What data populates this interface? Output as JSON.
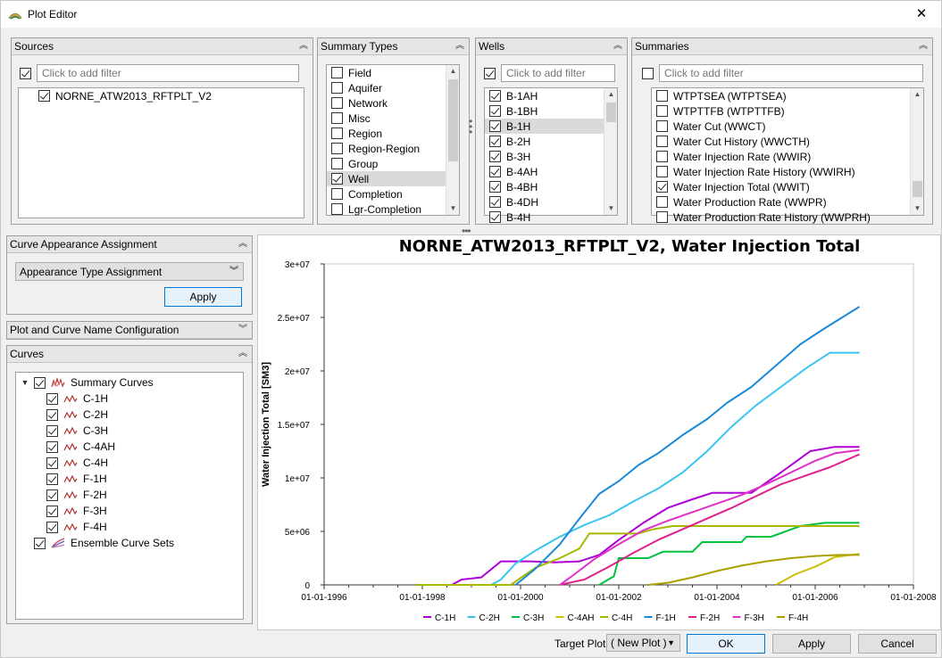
{
  "window": {
    "title": "Plot Editor",
    "close_glyph": "✕"
  },
  "sources": {
    "title": "Sources",
    "filter_placeholder": "Click to add filter",
    "filter_checked": true,
    "items": [
      {
        "label": "NORNE_ATW2013_RFTPLT_V2",
        "checked": true
      }
    ]
  },
  "summary_types": {
    "title": "Summary Types",
    "items": [
      {
        "label": "Field",
        "checked": false,
        "selected": false
      },
      {
        "label": "Aquifer",
        "checked": false,
        "selected": false
      },
      {
        "label": "Network",
        "checked": false,
        "selected": false
      },
      {
        "label": "Misc",
        "checked": false,
        "selected": false
      },
      {
        "label": "Region",
        "checked": false,
        "selected": false
      },
      {
        "label": "Region-Region",
        "checked": false,
        "selected": false
      },
      {
        "label": "Group",
        "checked": false,
        "selected": false
      },
      {
        "label": "Well",
        "checked": true,
        "selected": true
      },
      {
        "label": "Completion",
        "checked": false,
        "selected": false
      },
      {
        "label": "Lgr-Completion",
        "checked": false,
        "selected": false
      }
    ]
  },
  "wells": {
    "title": "Wells",
    "filter_placeholder": "Click to add filter",
    "filter_checked": true,
    "items": [
      {
        "label": "B-1AH",
        "checked": true,
        "selected": false
      },
      {
        "label": "B-1BH",
        "checked": true,
        "selected": false
      },
      {
        "label": "B-1H",
        "checked": true,
        "selected": true
      },
      {
        "label": "B-2H",
        "checked": true,
        "selected": false
      },
      {
        "label": "B-3H",
        "checked": true,
        "selected": false
      },
      {
        "label": "B-4AH",
        "checked": true,
        "selected": false
      },
      {
        "label": "B-4BH",
        "checked": true,
        "selected": false
      },
      {
        "label": "B-4DH",
        "checked": true,
        "selected": false
      },
      {
        "label": "B-4H",
        "checked": true,
        "selected": false
      }
    ]
  },
  "summaries": {
    "title": "Summaries",
    "filter_placeholder": "Click to add filter",
    "filter_checked": false,
    "items": [
      {
        "label": "WTPTSEA (WTPTSEA)",
        "checked": false,
        "selected": false
      },
      {
        "label": "WTPTTFB (WTPTTFB)",
        "checked": false,
        "selected": false
      },
      {
        "label": "Water Cut (WWCT)",
        "checked": false,
        "selected": false
      },
      {
        "label": "Water Cut History (WWCTH)",
        "checked": false,
        "selected": false
      },
      {
        "label": "Water Injection Rate (WWIR)",
        "checked": false,
        "selected": false
      },
      {
        "label": "Water Injection Rate History (WWIRH)",
        "checked": false,
        "selected": false
      },
      {
        "label": "Water Injection Total (WWIT)",
        "checked": true,
        "selected": false
      },
      {
        "label": "Water Production Rate (WWPR)",
        "checked": false,
        "selected": false
      },
      {
        "label": "Water Production Rate History (WWPRH)",
        "checked": false,
        "selected": false
      }
    ]
  },
  "appearance": {
    "title": "Curve Appearance Assignment",
    "dropdown": "Appearance Type Assignment",
    "apply": "Apply"
  },
  "plot_name_config": {
    "title": "Plot and Curve Name Configuration"
  },
  "curves": {
    "title": "Curves",
    "group": "Summary Curves",
    "items": [
      "C-1H",
      "C-2H",
      "C-3H",
      "C-4AH",
      "C-4H",
      "F-1H",
      "F-2H",
      "F-3H",
      "F-4H"
    ],
    "ensemble": "Ensemble Curve Sets"
  },
  "footer": {
    "target_plot_label": "Target Plot",
    "target_plot_value": "( New Plot )",
    "ok": "OK",
    "apply": "Apply",
    "cancel": "Cancel"
  },
  "chart_data": {
    "type": "line",
    "title": "NORNE_ATW2013_RFTPLT_V2, Water Injection Total",
    "xlabel": "",
    "ylabel": "Water Injection Total [SM3]",
    "xlim": [
      1996,
      2008
    ],
    "ylim": [
      0,
      30000000
    ],
    "x_ticks": [
      {
        "v": 1996,
        "label": "01-01-1996"
      },
      {
        "v": 1998,
        "label": "01-01-1998"
      },
      {
        "v": 2000,
        "label": "01-01-2000"
      },
      {
        "v": 2002,
        "label": "01-01-2002"
      },
      {
        "v": 2004,
        "label": "01-01-2004"
      },
      {
        "v": 2006,
        "label": "01-01-2006"
      },
      {
        "v": 2008,
        "label": "01-01-2008"
      }
    ],
    "y_ticks": [
      {
        "v": 0,
        "label": "0"
      },
      {
        "v": 5000000,
        "label": "5e+06"
      },
      {
        "v": 10000000,
        "label": "1e+07"
      },
      {
        "v": 15000000,
        "label": "1.5e+07"
      },
      {
        "v": 20000000,
        "label": "2e+07"
      },
      {
        "v": 25000000,
        "label": "2.5e+07"
      },
      {
        "v": 30000000,
        "label": "3e+07"
      }
    ],
    "grid": false,
    "legend": "bottom",
    "series": [
      {
        "name": "C-1H",
        "color": "#b000d8",
        "points": [
          [
            1997.9,
            0
          ],
          [
            1998.6,
            0
          ],
          [
            1998.8,
            500000
          ],
          [
            1999.2,
            700000
          ],
          [
            1999.6,
            2200000
          ],
          [
            2000.2,
            2200000
          ],
          [
            2000.7,
            2100000
          ],
          [
            2001.2,
            2200000
          ],
          [
            2001.6,
            2800000
          ],
          [
            2002.0,
            4200000
          ],
          [
            2002.5,
            5800000
          ],
          [
            2003.0,
            7200000
          ],
          [
            2003.5,
            8000000
          ],
          [
            2003.9,
            8600000
          ],
          [
            2004.7,
            8600000
          ],
          [
            2005.3,
            10500000
          ],
          [
            2005.9,
            12500000
          ],
          [
            2006.4,
            12900000
          ],
          [
            2006.9,
            12900000
          ]
        ]
      },
      {
        "name": "C-2H",
        "color": "#38c6f0",
        "points": [
          [
            1999.4,
            0
          ],
          [
            1999.6,
            500000
          ],
          [
            1999.9,
            2000000
          ],
          [
            2000.3,
            3200000
          ],
          [
            2000.8,
            4500000
          ],
          [
            2001.3,
            5600000
          ],
          [
            2001.8,
            6500000
          ],
          [
            2002.3,
            7800000
          ],
          [
            2002.8,
            9000000
          ],
          [
            2003.3,
            10500000
          ],
          [
            2003.8,
            12500000
          ],
          [
            2004.3,
            14800000
          ],
          [
            2004.8,
            16800000
          ],
          [
            2005.3,
            18500000
          ],
          [
            2005.8,
            20200000
          ],
          [
            2006.3,
            21700000
          ],
          [
            2006.9,
            21700000
          ]
        ]
      },
      {
        "name": "C-3H",
        "color": "#00c040",
        "points": [
          [
            2001.6,
            0
          ],
          [
            2001.9,
            800000
          ],
          [
            2002.0,
            2500000
          ],
          [
            2002.6,
            2500000
          ],
          [
            2002.9,
            3100000
          ],
          [
            2003.5,
            3100000
          ],
          [
            2003.7,
            4000000
          ],
          [
            2004.5,
            4000000
          ],
          [
            2004.6,
            4500000
          ],
          [
            2005.1,
            4500000
          ],
          [
            2005.7,
            5500000
          ],
          [
            2006.2,
            5800000
          ],
          [
            2006.9,
            5800000
          ]
        ]
      },
      {
        "name": "C-4AH",
        "color": "#c8c000",
        "points": [
          [
            2005.2,
            0
          ],
          [
            2005.6,
            1000000
          ],
          [
            2006.0,
            1700000
          ],
          [
            2006.4,
            2600000
          ],
          [
            2006.9,
            2900000
          ]
        ]
      },
      {
        "name": "C-4H",
        "color": "#a8b800",
        "points": [
          [
            1997.9,
            0
          ],
          [
            1999.8,
            0
          ],
          [
            2000.3,
            1600000
          ],
          [
            2000.8,
            2500000
          ],
          [
            2001.2,
            3400000
          ],
          [
            2001.4,
            4800000
          ],
          [
            2001.9,
            4800000
          ],
          [
            2002.4,
            4800000
          ],
          [
            2002.7,
            5200000
          ],
          [
            2003.1,
            5500000
          ],
          [
            2006.9,
            5500000
          ]
        ]
      },
      {
        "name": "F-1H",
        "color": "#1a8ad8",
        "points": [
          [
            1999.9,
            0
          ],
          [
            2000.3,
            1500000
          ],
          [
            2000.8,
            3800000
          ],
          [
            2001.2,
            6200000
          ],
          [
            2001.6,
            8500000
          ],
          [
            2002.0,
            9700000
          ],
          [
            2002.4,
            11200000
          ],
          [
            2002.8,
            12300000
          ],
          [
            2003.3,
            14000000
          ],
          [
            2003.8,
            15500000
          ],
          [
            2004.2,
            17000000
          ],
          [
            2004.7,
            18500000
          ],
          [
            2005.2,
            20500000
          ],
          [
            2005.7,
            22500000
          ],
          [
            2006.2,
            24000000
          ],
          [
            2006.9,
            26000000
          ]
        ]
      },
      {
        "name": "F-2H",
        "color": "#e0208c",
        "points": [
          [
            2000.8,
            0
          ],
          [
            2001.3,
            500000
          ],
          [
            2001.8,
            1700000
          ],
          [
            2002.3,
            3000000
          ],
          [
            2002.8,
            4200000
          ],
          [
            2003.3,
            5200000
          ],
          [
            2003.8,
            6200000
          ],
          [
            2004.3,
            7200000
          ],
          [
            2004.8,
            8300000
          ],
          [
            2005.3,
            9400000
          ],
          [
            2005.8,
            10200000
          ],
          [
            2006.3,
            11000000
          ],
          [
            2006.9,
            12200000
          ]
        ]
      },
      {
        "name": "F-3H",
        "color": "#e030c8",
        "points": [
          [
            2000.8,
            0
          ],
          [
            2001.1,
            1000000
          ],
          [
            2001.5,
            2400000
          ],
          [
            2002.0,
            3800000
          ],
          [
            2002.5,
            5100000
          ],
          [
            2003.0,
            6000000
          ],
          [
            2003.5,
            6800000
          ],
          [
            2004.0,
            7600000
          ],
          [
            2004.5,
            8400000
          ],
          [
            2005.0,
            9400000
          ],
          [
            2005.5,
            10500000
          ],
          [
            2006.0,
            11600000
          ],
          [
            2006.4,
            12300000
          ],
          [
            2006.9,
            12600000
          ]
        ]
      },
      {
        "name": "F-4H",
        "color": "#aaa000",
        "points": [
          [
            2002.6,
            0
          ],
          [
            2003.0,
            200000
          ],
          [
            2003.5,
            700000
          ],
          [
            2004.0,
            1300000
          ],
          [
            2004.5,
            1800000
          ],
          [
            2005.0,
            2200000
          ],
          [
            2005.5,
            2500000
          ],
          [
            2006.0,
            2700000
          ],
          [
            2006.5,
            2800000
          ],
          [
            2006.9,
            2800000
          ]
        ]
      }
    ]
  }
}
